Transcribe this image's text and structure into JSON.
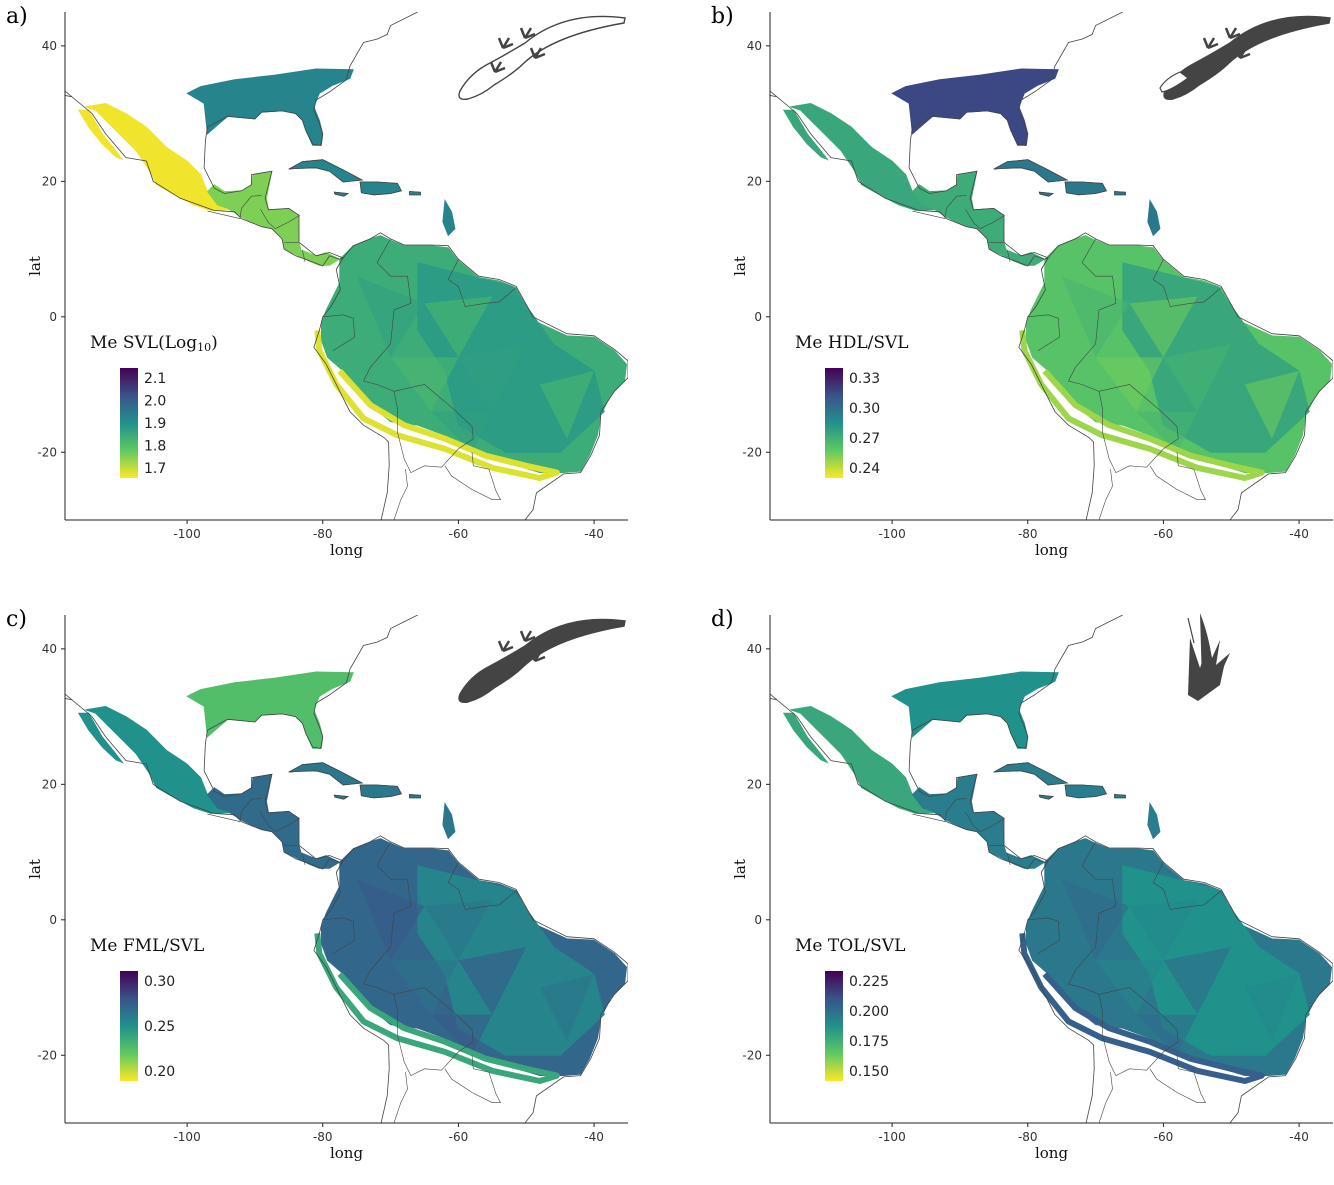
{
  "axis": {
    "x_label": "long",
    "y_label": "lat",
    "x_ticks": [
      -100,
      -80,
      -60,
      -40
    ],
    "y_ticks": [
      40,
      20,
      0,
      -20
    ],
    "x_range": [
      -118,
      -35
    ],
    "y_range": [
      -30,
      45
    ]
  },
  "viridis": [
    "#440154",
    "#3b528b",
    "#21918c",
    "#5ec962",
    "#fde725"
  ],
  "panels": [
    {
      "letter": "a)",
      "legend_title_main": "Me SVL(Log",
      "legend_title_sub": "10",
      "legend_title_end": ")",
      "legend_ticks": [
        "2.1",
        "2.0",
        "1.9",
        "1.8",
        "1.7"
      ],
      "icon": "lizard-outline-icon",
      "regions": {
        "na": 0.45,
        "mex": 0.98,
        "cam": 0.8,
        "car": 0.45,
        "sam": 0.62,
        "sam2": 0.55,
        "rim": 0.95
      }
    },
    {
      "letter": "b)",
      "legend_title_main": "Me HDL/SVL",
      "legend_title_sub": "",
      "legend_title_end": "",
      "legend_ticks": [
        "0.33",
        "0.30",
        "0.27",
        "0.24"
      ],
      "icon": "lizard-head-highlighted-icon",
      "regions": {
        "na": 0.22,
        "mex": 0.6,
        "cam": 0.62,
        "car": 0.4,
        "sam": 0.72,
        "sam2": 0.6,
        "rim": 0.85
      }
    },
    {
      "letter": "c)",
      "legend_title_main": "Me FML/SVL",
      "legend_title_sub": "",
      "legend_title_end": "",
      "legend_ticks": [
        "0.30",
        "0.25",
        "0.20"
      ],
      "icon": "lizard-silhouette-icon",
      "regions": {
        "na": 0.7,
        "mex": 0.5,
        "cam": 0.35,
        "car": 0.4,
        "sam": 0.33,
        "sam2": 0.45,
        "rim": 0.6
      }
    },
    {
      "letter": "d)",
      "legend_title_main": "Me TOL/SVL",
      "legend_title_sub": "",
      "legend_title_end": "",
      "legend_ticks": [
        "0.225",
        "0.200",
        "0.175",
        "0.150"
      ],
      "icon": "lizard-toe-icon",
      "regions": {
        "na": 0.5,
        "mex": 0.6,
        "cam": 0.42,
        "car": 0.42,
        "sam": 0.4,
        "sam2": 0.5,
        "rim": 0.3
      }
    }
  ]
}
